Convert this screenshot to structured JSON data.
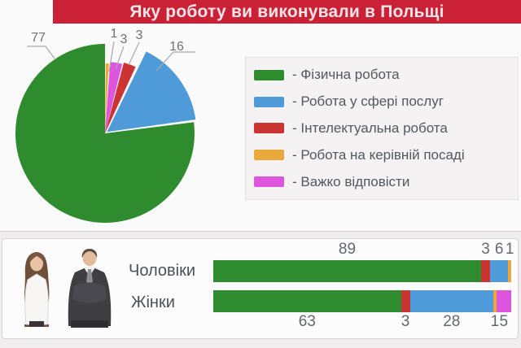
{
  "title": "Яку роботу ви виконували в Польщі",
  "legend": {
    "items": [
      {
        "label": "- Фізична робота",
        "color": "#2e8b2e"
      },
      {
        "label": "- Робота у сфері послуг",
        "color": "#4f9bd9"
      },
      {
        "label": "- Інтелектуальна робота",
        "color": "#cc3434"
      },
      {
        "label": "- Робота на керівній посаді",
        "color": "#e9a83a"
      },
      {
        "label": "- Важко відповісти",
        "color": "#dd55dd"
      }
    ]
  },
  "chart_data": [
    {
      "type": "pie",
      "title": "Яку роботу ви виконували в Польщі",
      "labels": [
        "Фізична робота",
        "Робота у сфері послуг",
        "Інтелектуальна робота",
        "Робота на керівній посаді",
        "Важко відповісти"
      ],
      "values": [
        77,
        16,
        3,
        1,
        3
      ],
      "colors": [
        "#2e8b2e",
        "#4f9bd9",
        "#cc3434",
        "#e9a83a",
        "#dd55dd"
      ],
      "unit": "percent",
      "legend_position": "right"
    },
    {
      "type": "bar",
      "stacked": true,
      "orientation": "horizontal",
      "categories": [
        "Чоловіки",
        "Жінки"
      ],
      "series": [
        {
          "name": "Фізична робота",
          "color": "#2e8b2e",
          "values": [
            89,
            63
          ]
        },
        {
          "name": "Інтелектуальна робота",
          "color": "#cc3434",
          "values": [
            3,
            3
          ]
        },
        {
          "name": "Робота у сфері послуг",
          "color": "#4f9bd9",
          "values": [
            6,
            28
          ]
        },
        {
          "name": "Робота на керівній посаді",
          "color": "#e9a83a",
          "values": [
            1,
            1
          ]
        },
        {
          "name": "Важко відповісти",
          "color": "#dd55dd",
          "values": [
            0,
            5
          ]
        }
      ],
      "xlim": [
        0,
        100
      ]
    }
  ]
}
